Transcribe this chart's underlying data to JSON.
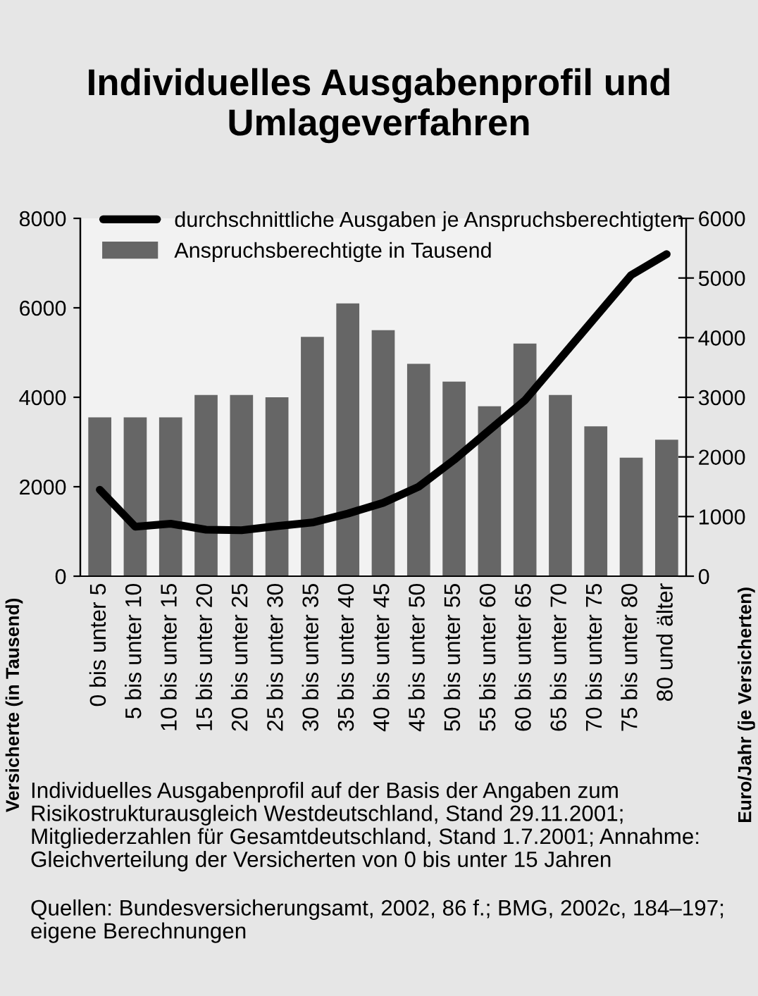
{
  "chart_data": {
    "type": "bar",
    "title": "Individuelles Ausgabenprofil und Umlageverfahren",
    "categories": [
      "0 bis unter 5",
      "5 bis unter 10",
      "10 bis unter 15",
      "15 bis unter 20",
      "20 bis unter 25",
      "25 bis unter 30",
      "30 bis unter 35",
      "35 bis unter 40",
      "40 bis unter 45",
      "45 bis unter 50",
      "50 bis unter 55",
      "55 bis unter 60",
      "60 bis unter 65",
      "65 bis unter 70",
      "70 bis unter 75",
      "75 bis unter 80",
      "80 und älter"
    ],
    "series": [
      {
        "name": "durchschnittliche Ausgaben je Anspruchsberechtigten",
        "type": "line",
        "axis": "y2",
        "color": "#000000",
        "values": [
          1450,
          830,
          880,
          780,
          770,
          840,
          900,
          1050,
          1230,
          1500,
          1950,
          2450,
          2950,
          3650,
          4350,
          5050,
          5400
        ]
      },
      {
        "name": "Anspruchsberechtigte in Tausend",
        "color": "#666666",
        "values": [
          3550,
          3550,
          3550,
          4050,
          4050,
          4000,
          5350,
          6100,
          5500,
          4750,
          4350,
          3800,
          5200,
          4050,
          3350,
          2650,
          3050
        ]
      }
    ],
    "ylabel": "Versicherte (in Tausend)",
    "y2label": "Euro/Jahr (je Versicherten)",
    "ylim": [
      0,
      8000
    ],
    "yticks": [
      0,
      2000,
      4000,
      6000,
      8000
    ],
    "y2lim": [
      0,
      6000
    ],
    "y2ticks": [
      0,
      1000,
      2000,
      3000,
      4000,
      5000,
      6000
    ],
    "legend": "top left",
    "grid": false,
    "annotations": [
      "Individuelles Ausgabenprofil auf der Basis der Angaben zum Risikostrukturausgleich Westdeutschland, Stand 29.11.2001; Mitgliederzahlen für Gesamtdeutschland, Stand 1.7.2001; Annahme: Gleichverteilung der Versicherten von 0 bis unter 15 Jahren",
      "Quellen: Bundesversicherungsamt, 2002, 86 f.; BMG, 2002c, 184–197; eigene Berechnungen"
    ]
  }
}
